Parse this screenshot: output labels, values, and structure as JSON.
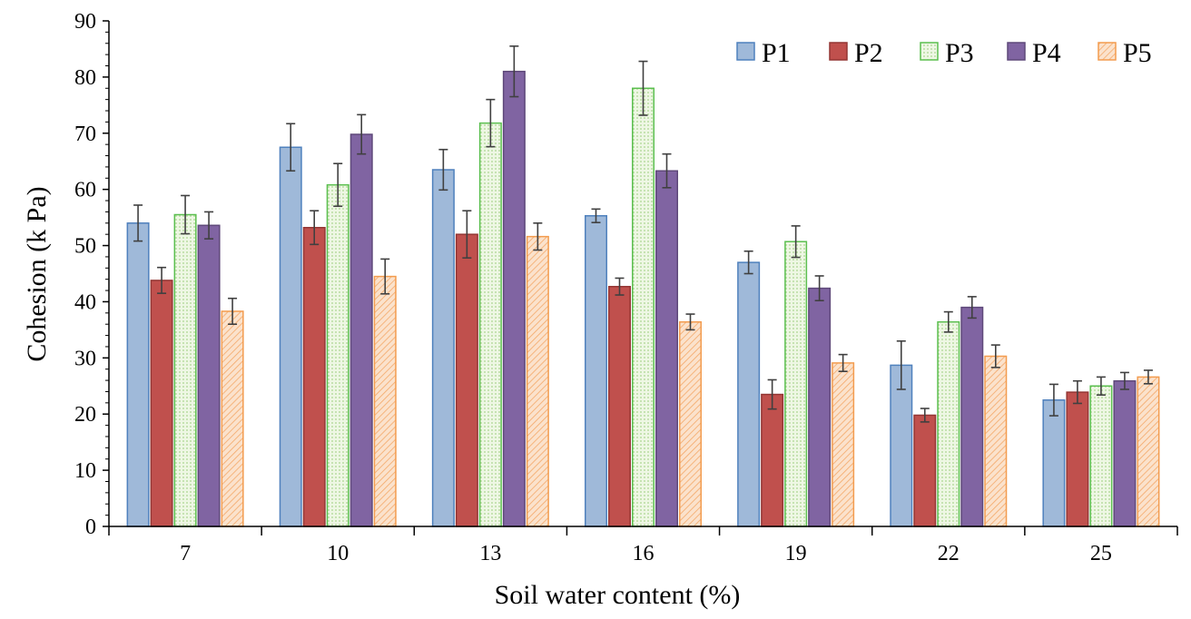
{
  "chart_data": {
    "type": "bar",
    "title": "",
    "xlabel": "Soil water content (%)",
    "ylabel": "Cohesion (k Pa)",
    "categories": [
      "7",
      "10",
      "13",
      "16",
      "19",
      "22",
      "25"
    ],
    "ylim": [
      0,
      90
    ],
    "yticks": [
      "0",
      "10",
      "20",
      "30",
      "40",
      "50",
      "60",
      "70",
      "80",
      "90"
    ],
    "grid": false,
    "legend_position": "top-right",
    "error_bars": true,
    "series": [
      {
        "name": "P1",
        "color": "#9fb9d9",
        "edge": "#4f81bd",
        "pattern": "solid",
        "values": [
          54.0,
          67.5,
          63.5,
          55.3,
          47.0,
          28.7,
          22.5
        ],
        "errors": [
          3.2,
          4.2,
          3.6,
          1.2,
          2.0,
          4.3,
          2.8
        ]
      },
      {
        "name": "P2",
        "color": "#c0504d",
        "edge": "#943634",
        "pattern": "solid",
        "values": [
          43.8,
          53.2,
          52.0,
          42.7,
          23.5,
          19.8,
          23.9
        ],
        "errors": [
          2.3,
          3.0,
          4.2,
          1.5,
          2.6,
          1.2,
          2.0
        ]
      },
      {
        "name": "P3",
        "color": "#e6f2d8",
        "edge": "#5bbf4f",
        "pattern": "dots",
        "values": [
          55.5,
          60.8,
          71.8,
          78.0,
          50.7,
          36.4,
          25.0
        ],
        "errors": [
          3.4,
          3.8,
          4.2,
          4.8,
          2.8,
          1.8,
          1.6
        ]
      },
      {
        "name": "P4",
        "color": "#8064a2",
        "edge": "#5f497a",
        "pattern": "solid",
        "values": [
          53.6,
          69.8,
          81.0,
          63.3,
          42.4,
          39.0,
          25.9
        ],
        "errors": [
          2.4,
          3.5,
          4.5,
          3.0,
          2.2,
          1.9,
          1.5
        ]
      },
      {
        "name": "P5",
        "color": "#f9c8a0",
        "edge": "#f39c4f",
        "pattern": "hatch",
        "values": [
          38.3,
          44.5,
          51.6,
          36.4,
          29.1,
          30.3,
          26.6
        ],
        "errors": [
          2.3,
          3.1,
          2.4,
          1.4,
          1.5,
          2.0,
          1.2
        ]
      }
    ]
  }
}
